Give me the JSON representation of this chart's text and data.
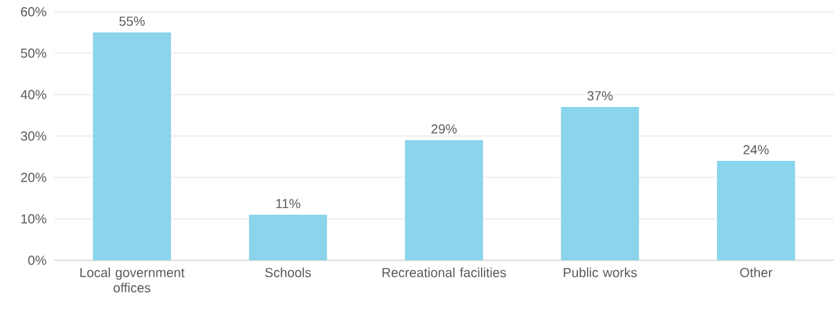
{
  "chart_data": {
    "type": "bar",
    "categories": [
      "Local government offices",
      "Schools",
      "Recreational facilities",
      "Public works",
      "Other"
    ],
    "values": [
      55,
      11,
      29,
      37,
      24
    ],
    "value_labels": [
      "55%",
      "11%",
      "29%",
      "37%",
      "24%"
    ],
    "color": "#8ad4ec",
    "ylim": [
      0,
      60
    ],
    "yticks": [
      {
        "value": 0,
        "label": "0%"
      },
      {
        "value": 10,
        "label": "10%"
      },
      {
        "value": 20,
        "label": "20%"
      },
      {
        "value": 30,
        "label": "30%"
      },
      {
        "value": 40,
        "label": "40%"
      },
      {
        "value": 50,
        "label": "50%"
      },
      {
        "value": 60,
        "label": "60%"
      }
    ],
    "grid": "y"
  }
}
